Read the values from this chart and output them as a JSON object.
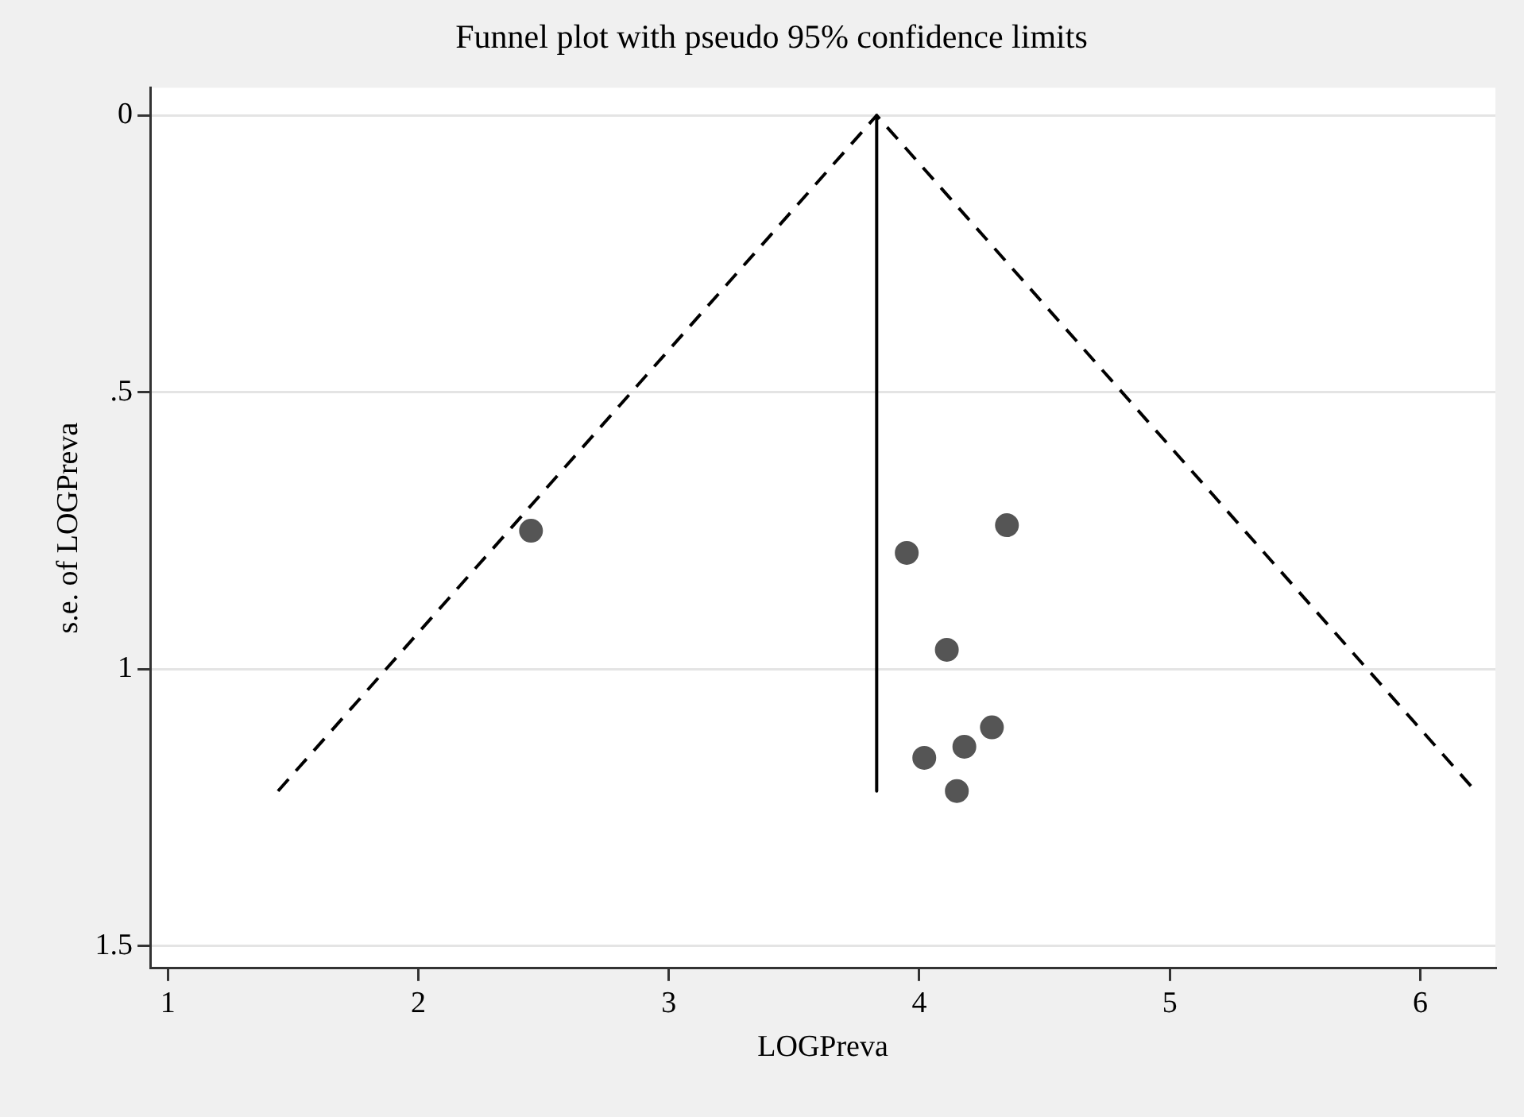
{
  "chart_data": {
    "type": "scatter",
    "title": "Funnel plot with pseudo 95% confidence limits",
    "xlabel": "LOGPreva",
    "ylabel": "s.e. of LOGPreva",
    "xlim": [
      0.93,
      6.3
    ],
    "xticks": [
      1,
      2,
      3,
      4,
      5,
      6
    ],
    "ylim": [
      1.54,
      -0.05
    ],
    "yticks": [
      0,
      {
        "value": 0.5,
        "label": ".5"
      },
      1,
      1.5
    ],
    "grid": "y",
    "legend": false,
    "series": [
      {
        "type": "line",
        "color": "#000000",
        "line_style": "dashed",
        "marker": "none",
        "x": [
          1.44,
          3.83,
          6.22
        ],
        "values": [
          1.22,
          0,
          1.22
        ]
      },
      {
        "type": "line",
        "color": "#000000",
        "line_style": "solid",
        "marker": "none",
        "x": [
          3.83,
          3.83
        ],
        "values": [
          0,
          1.22
        ]
      },
      {
        "type": "scatter",
        "color": "#555555",
        "marker": "circle",
        "x": [
          2.45,
          3.95,
          4.35,
          4.11,
          4.29,
          4.18,
          4.02,
          4.15
        ],
        "values": [
          0.75,
          0.79,
          0.74,
          0.965,
          1.105,
          1.14,
          1.16,
          1.22
        ]
      }
    ]
  }
}
